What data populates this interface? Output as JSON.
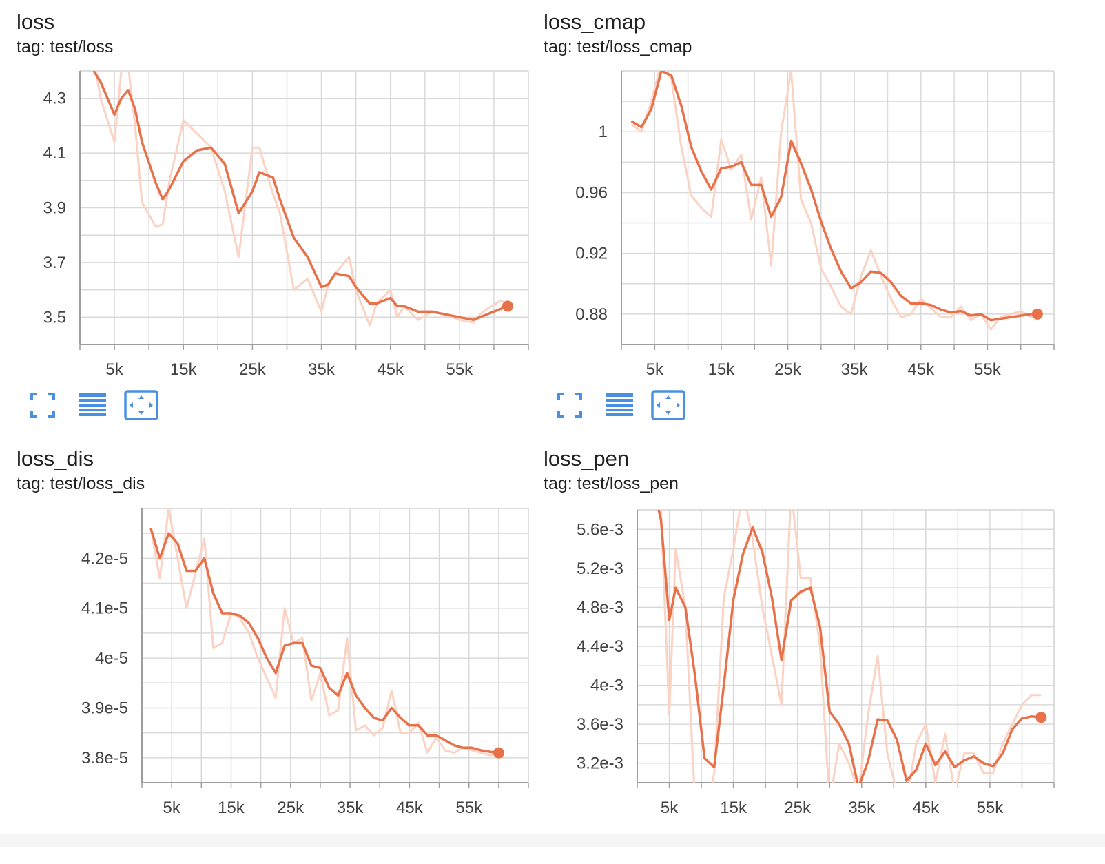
{
  "accent_color": "#e8714a",
  "raw_color": "#fbd3c4",
  "toolbar_icons": [
    "fullscreen-icon",
    "data-table-icon",
    "fit-domain-icon"
  ],
  "charts": [
    {
      "id": "loss",
      "title": "loss",
      "tag": "tag: test/loss",
      "has_toolbar": true,
      "chart_data": {
        "type": "line",
        "title": "loss",
        "x_ticks": [
          5000,
          15000,
          25000,
          35000,
          45000,
          55000
        ],
        "x_tick_labels": [
          "5k",
          "15k",
          "25k",
          "35k",
          "45k",
          "55k"
        ],
        "y_ticks": [
          3.5,
          3.7,
          3.9,
          4.1,
          4.3
        ],
        "y_tick_labels": [
          "3.5",
          "3.7",
          "3.9",
          "4.1",
          "4.3"
        ],
        "xlim": [
          0,
          65000
        ],
        "ylim": [
          3.4,
          4.4
        ],
        "grid": true,
        "series": [
          {
            "kind": "smoothed",
            "x": [
              2000,
              3000,
              5000,
              6000,
              7000,
              8000,
              9000,
              11000,
              12000,
              13000,
              15000,
              17000,
              19000,
              21000,
              23000,
              25000,
              26000,
              28000,
              29000,
              31000,
              33000,
              35000,
              36000,
              37000,
              39000,
              40000,
              42000,
              43000,
              45000,
              46000,
              47000,
              49000,
              51000,
              53000,
              55000,
              57000,
              58000,
              59000,
              61000,
              62000
            ],
            "y": [
              4.4,
              4.36,
              4.24,
              4.3,
              4.33,
              4.26,
              4.14,
              3.99,
              3.93,
              3.97,
              4.07,
              4.11,
              4.12,
              4.06,
              3.88,
              3.96,
              4.03,
              4.01,
              3.93,
              3.79,
              3.72,
              3.61,
              3.62,
              3.66,
              3.65,
              3.61,
              3.55,
              3.55,
              3.57,
              3.54,
              3.54,
              3.52,
              3.52,
              3.51,
              3.5,
              3.49,
              3.5,
              3.51,
              3.53,
              3.54
            ]
          },
          {
            "kind": "raw",
            "x": [
              2000,
              3000,
              5000,
              6000,
              7000,
              8000,
              9000,
              11000,
              12000,
              13000,
              15000,
              17000,
              19000,
              21000,
              23000,
              25000,
              26000,
              28000,
              29000,
              31000,
              33000,
              35000,
              36000,
              37000,
              39000,
              40000,
              42000,
              43000,
              45000,
              46000,
              47000,
              49000,
              51000,
              53000,
              55000,
              57000,
              58000,
              59000,
              61000,
              62000
            ],
            "y": [
              4.45,
              4.3,
              4.14,
              4.4,
              4.42,
              4.2,
              3.92,
              3.83,
              3.84,
              4.0,
              4.22,
              4.17,
              4.12,
              3.96,
              3.72,
              4.12,
              4.12,
              3.95,
              3.88,
              3.6,
              3.64,
              3.52,
              3.62,
              3.66,
              3.72,
              3.6,
              3.47,
              3.55,
              3.6,
              3.5,
              3.54,
              3.49,
              3.52,
              3.51,
              3.49,
              3.48,
              3.51,
              3.53,
              3.56,
              3.55
            ]
          }
        ]
      }
    },
    {
      "id": "loss_cmap",
      "title": "loss_cmap",
      "tag": "tag: test/loss_cmap",
      "has_toolbar": true,
      "chart_data": {
        "type": "line",
        "title": "loss_cmap",
        "x_ticks": [
          5000,
          15000,
          25000,
          35000,
          45000,
          55000
        ],
        "x_tick_labels": [
          "5k",
          "15k",
          "25k",
          "35k",
          "45k",
          "55k"
        ],
        "y_ticks": [
          0.88,
          0.92,
          0.96,
          1.0
        ],
        "y_tick_labels": [
          "0.88",
          "0.92",
          "0.96",
          "1"
        ],
        "xlim": [
          0,
          65000
        ],
        "ylim": [
          0.86,
          1.04
        ],
        "grid": true,
        "series": [
          {
            "kind": "smoothed",
            "x": [
              1500,
              3000,
              4500,
              6000,
              7500,
              9000,
              10500,
              12000,
              13500,
              15000,
              16500,
              18000,
              19500,
              21000,
              22500,
              24000,
              25500,
              27000,
              28500,
              30000,
              31500,
              33000,
              34500,
              36000,
              37500,
              39000,
              40500,
              42000,
              43500,
              45000,
              46500,
              48000,
              49500,
              51000,
              52500,
              54000,
              55500,
              57000,
              58500,
              60000,
              61500,
              62500
            ],
            "y": [
              1.007,
              1.003,
              1.015,
              1.04,
              1.037,
              1.017,
              0.99,
              0.974,
              0.962,
              0.976,
              0.977,
              0.98,
              0.965,
              0.965,
              0.944,
              0.957,
              0.994,
              0.979,
              0.962,
              0.941,
              0.923,
              0.908,
              0.897,
              0.901,
              0.908,
              0.907,
              0.901,
              0.892,
              0.887,
              0.887,
              0.886,
              0.883,
              0.881,
              0.882,
              0.879,
              0.88,
              0.876,
              0.877,
              0.878,
              0.879,
              0.88,
              0.88
            ]
          },
          {
            "kind": "raw",
            "x": [
              1500,
              3000,
              4500,
              6000,
              7500,
              9000,
              10500,
              12000,
              13500,
              15000,
              16500,
              18000,
              19500,
              21000,
              22500,
              24000,
              25500,
              27000,
              28500,
              30000,
              31500,
              33000,
              34500,
              36000,
              37500,
              39000,
              40500,
              42000,
              43500,
              45000,
              46500,
              48000,
              49500,
              51000,
              52500,
              54000,
              55500,
              57000,
              58500,
              60000,
              61500,
              62500
            ],
            "y": [
              1.005,
              1.0,
              1.02,
              1.045,
              1.035,
              0.99,
              0.958,
              0.95,
              0.944,
              0.995,
              0.975,
              0.985,
              0.942,
              0.97,
              0.912,
              1.0,
              1.04,
              0.955,
              0.94,
              0.91,
              0.898,
              0.885,
              0.88,
              0.905,
              0.922,
              0.905,
              0.89,
              0.878,
              0.88,
              0.89,
              0.884,
              0.878,
              0.878,
              0.885,
              0.876,
              0.88,
              0.87,
              0.878,
              0.88,
              0.882,
              0.878,
              0.88
            ]
          }
        ]
      }
    },
    {
      "id": "loss_dis",
      "title": "loss_dis",
      "tag": "tag: test/loss_dis",
      "has_toolbar": false,
      "chart_data": {
        "type": "line",
        "title": "loss_dis",
        "x_ticks": [
          5000,
          15000,
          25000,
          35000,
          45000,
          55000
        ],
        "x_tick_labels": [
          "5k",
          "15k",
          "25k",
          "35k",
          "45k",
          "55k"
        ],
        "y_ticks": [
          3.8e-05,
          3.9e-05,
          4e-05,
          4.1e-05,
          4.2e-05
        ],
        "y_tick_labels": [
          "3.8e-5",
          "3.9e-5",
          "4e-5",
          "4.1e-5",
          "4.2e-5"
        ],
        "xlim": [
          0,
          65000
        ],
        "ylim": [
          3.75e-05,
          4.3e-05
        ],
        "grid": true,
        "series": [
          {
            "kind": "smoothed",
            "x": [
              1500,
              3000,
              4500,
              6000,
              7500,
              9000,
              10500,
              12000,
              13500,
              15000,
              16500,
              18000,
              19500,
              21000,
              22500,
              24000,
              25500,
              27000,
              28500,
              30000,
              31500,
              33000,
              34500,
              36000,
              37500,
              39000,
              40500,
              42000,
              43500,
              45000,
              46500,
              48000,
              49500,
              51000,
              52500,
              54000,
              55500,
              57000,
              58500,
              60000
            ],
            "y": [
              4.26e-05,
              4.2e-05,
              4.25e-05,
              4.23e-05,
              4.175e-05,
              4.175e-05,
              4.2e-05,
              4.13e-05,
              4.09e-05,
              4.09e-05,
              4.085e-05,
              4.07e-05,
              4.04e-05,
              4e-05,
              3.97e-05,
              4.025e-05,
              4.03e-05,
              4.03e-05,
              3.985e-05,
              3.98e-05,
              3.94e-05,
              3.925e-05,
              3.97e-05,
              3.925e-05,
              3.9e-05,
              3.88e-05,
              3.875e-05,
              3.9e-05,
              3.88e-05,
              3.865e-05,
              3.865e-05,
              3.845e-05,
              3.845e-05,
              3.835e-05,
              3.825e-05,
              3.82e-05,
              3.82e-05,
              3.815e-05,
              3.812e-05,
              3.81e-05
            ]
          },
          {
            "kind": "raw",
            "x": [
              1500,
              3000,
              4500,
              6000,
              7500,
              9000,
              10500,
              12000,
              13500,
              15000,
              16500,
              18000,
              19500,
              21000,
              22500,
              24000,
              25500,
              27000,
              28500,
              30000,
              31500,
              33000,
              34500,
              36000,
              37500,
              39000,
              40500,
              42000,
              43500,
              45000,
              46500,
              48000,
              49500,
              51000,
              52500,
              54000,
              55500,
              57000,
              58500,
              60000
            ],
            "y": [
              4.26e-05,
              4.16e-05,
              4.3e-05,
              4.2e-05,
              4.1e-05,
              4.17e-05,
              4.24e-05,
              4.02e-05,
              4.03e-05,
              4.09e-05,
              4.08e-05,
              4.05e-05,
              4e-05,
              3.96e-05,
              3.92e-05,
              4.1e-05,
              4.03e-05,
              4.04e-05,
              3.915e-05,
              3.97e-05,
              3.885e-05,
              3.895e-05,
              4.04e-05,
              3.855e-05,
              3.865e-05,
              3.845e-05,
              3.86e-05,
              3.935e-05,
              3.85e-05,
              3.85e-05,
              3.87e-05,
              3.81e-05,
              3.84e-05,
              3.815e-05,
              3.81e-05,
              3.82e-05,
              3.815e-05,
              3.81e-05,
              3.805e-05,
              3.81e-05
            ]
          }
        ]
      }
    },
    {
      "id": "loss_pen",
      "title": "loss_pen",
      "tag": "tag: test/loss_pen",
      "has_toolbar": false,
      "chart_data": {
        "type": "line",
        "title": "loss_pen",
        "x_ticks": [
          5000,
          15000,
          25000,
          35000,
          45000,
          55000
        ],
        "x_tick_labels": [
          "5k",
          "15k",
          "25k",
          "35k",
          "45k",
          "55k"
        ],
        "y_ticks": [
          0.0032,
          0.0036,
          0.004,
          0.0044,
          0.0048,
          0.0052,
          0.0056
        ],
        "y_tick_labels": [
          "3.2e-3",
          "3.6e-3",
          "4e-3",
          "4.4e-3",
          "4.8e-3",
          "5.2e-3",
          "5.6e-3"
        ],
        "xlim": [
          0,
          65000
        ],
        "ylim": [
          0.003,
          0.0058
        ],
        "grid": true,
        "series": [
          {
            "kind": "smoothed",
            "x": [
              3000,
              3700,
              5000,
              6000,
              7500,
              9000,
              10500,
              12000,
              13500,
              15000,
              16500,
              18000,
              19500,
              21000,
              22500,
              24000,
              25500,
              27000,
              28500,
              30000,
              31500,
              33000,
              34500,
              36000,
              37500,
              39000,
              40500,
              42000,
              43500,
              45000,
              46500,
              48000,
              49500,
              51000,
              52500,
              54000,
              55500,
              57000,
              58500,
              60000,
              61500,
              63000
            ],
            "y": [
              0.0059,
              0.0057,
              0.00467,
              0.005,
              0.0048,
              0.0041,
              0.00325,
              0.00316,
              0.004,
              0.00488,
              0.00535,
              0.00562,
              0.00537,
              0.0049,
              0.00426,
              0.00487,
              0.00496,
              0.005,
              0.0046,
              0.00373,
              0.0036,
              0.0034,
              0.00295,
              0.00322,
              0.00365,
              0.00364,
              0.00344,
              0.00302,
              0.00313,
              0.0034,
              0.00318,
              0.00332,
              0.00316,
              0.00323,
              0.00327,
              0.0032,
              0.00317,
              0.0033,
              0.00355,
              0.00366,
              0.00368,
              0.00367
            ]
          },
          {
            "kind": "raw",
            "x": [
              3000,
              3700,
              5000,
              6000,
              7500,
              9000,
              10500,
              12000,
              13500,
              15000,
              16500,
              18000,
              19500,
              21000,
              22500,
              24000,
              25500,
              27000,
              28500,
              30000,
              31500,
              33000,
              34500,
              36000,
              37500,
              39000,
              40500,
              42000,
              43500,
              45000,
              46500,
              48000,
              49500,
              51000,
              52500,
              54000,
              55500,
              57000,
              58500,
              60000,
              61500,
              63000
            ],
            "y": [
              0.006,
              0.0058,
              0.0037,
              0.0054,
              0.0048,
              0.0028,
              0.0026,
              0.0031,
              0.0049,
              0.0054,
              0.006,
              0.0055,
              0.0048,
              0.0043,
              0.0038,
              0.006,
              0.0051,
              0.0051,
              0.0044,
              0.0028,
              0.0034,
              0.0032,
              0.0029,
              0.0037,
              0.0043,
              0.0033,
              0.0029,
              0.0028,
              0.0034,
              0.0036,
              0.003,
              0.0035,
              0.0029,
              0.0033,
              0.0033,
              0.0031,
              0.0031,
              0.0034,
              0.0036,
              0.0038,
              0.0039,
              0.0039
            ]
          }
        ]
      }
    }
  ]
}
